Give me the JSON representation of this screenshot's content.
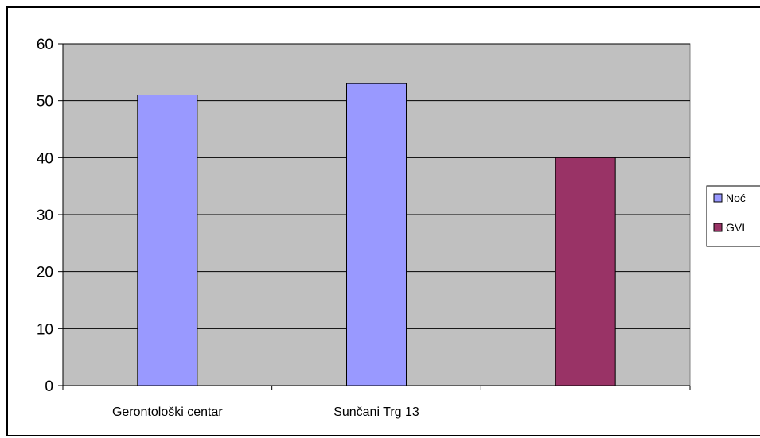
{
  "chart_data": {
    "type": "bar",
    "title": "",
    "xlabel": "",
    "ylabel": "",
    "ylim": [
      0,
      60
    ],
    "yticks": [
      0,
      10,
      20,
      30,
      40,
      50,
      60
    ],
    "categories": [
      "Gerontološki centar",
      "Sunčani Trg 13",
      ""
    ],
    "series": [
      {
        "name": "Noć",
        "color": "#9999ff",
        "values": [
          51,
          53,
          null
        ]
      },
      {
        "name": "GVI",
        "color": "#993366",
        "values": [
          null,
          null,
          40
        ]
      }
    ],
    "grid": true,
    "plot_background": "#c0c0c0",
    "legend_position": "right"
  }
}
